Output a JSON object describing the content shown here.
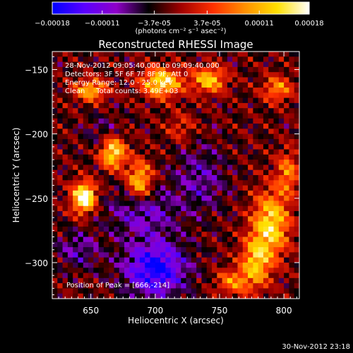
{
  "chart_data": {
    "type": "heatmap",
    "title": "Reconstructed RHESSI Image",
    "xlabel": "Heliocentric X (arcsec)",
    "ylabel": "Heliocentric Y (arcsec)",
    "xlim": [
      620,
      812
    ],
    "ylim": [
      -328,
      -136
    ],
    "x_ticks": [
      650,
      700,
      750,
      800
    ],
    "y_ticks": [
      -150,
      -200,
      -250,
      -300
    ],
    "x_tick_labels": [
      "650",
      "700",
      "750",
      "800"
    ],
    "y_tick_labels": [
      "−150",
      "−200",
      "−250",
      "−300"
    ],
    "colorbar": {
      "range": [
        -0.00018,
        0.00018
      ],
      "tick_values": [
        -0.00018,
        -0.00011,
        -3.7e-05,
        3.7e-05,
        0.00011,
        0.00018
      ],
      "tick_labels": [
        "−0.00018",
        "−0.00011",
        "−3.7e-05",
        "3.7e-05",
        "0.00011",
        "0.00018"
      ],
      "unit_label": "(photons cm⁻² s⁻¹ asec⁻²)",
      "colormap": [
        "#0000ff",
        "#5a00ff",
        "#8f00c8",
        "#000000",
        "#a00000",
        "#ff3000",
        "#ff9000",
        "#ffe000",
        "#ffffff"
      ]
    },
    "annotations": [
      "28-Nov-2012 09:05:40.000 to 09:09:40.000",
      "Detectors: 3F 5F 6F 7F 8F 9F, Att 0",
      "Energy Range: 12.0 - 25.0 keV",
      "Clean     Total counts: 3.49E+03",
      "Position of Peak = [666,-214]"
    ],
    "peak": {
      "x": 666,
      "y": -214
    },
    "sources": [
      {
        "x": 667,
        "y": -214,
        "amp": 1.0,
        "sx": 7,
        "sy": 9
      },
      {
        "x": 688,
        "y": -237,
        "amp": 0.85,
        "sx": 7,
        "sy": 11
      },
      {
        "x": 643,
        "y": -250,
        "amp": 0.9,
        "sx": 6,
        "sy": 9
      },
      {
        "x": 648,
        "y": -248,
        "amp": 0.6,
        "sx": 5,
        "sy": 6
      },
      {
        "x": 705,
        "y": -160,
        "amp": 0.95,
        "sx": 11,
        "sy": 8
      },
      {
        "x": 650,
        "y": -166,
        "amp": 0.75,
        "sx": 9,
        "sy": 6
      },
      {
        "x": 742,
        "y": -158,
        "amp": 0.8,
        "sx": 9,
        "sy": 7
      },
      {
        "x": 795,
        "y": -165,
        "amp": 0.6,
        "sx": 8,
        "sy": 7
      },
      {
        "x": 790,
        "y": -270,
        "amp": 0.9,
        "sx": 10,
        "sy": 18
      },
      {
        "x": 778,
        "y": -300,
        "amp": 0.75,
        "sx": 8,
        "sy": 14
      },
      {
        "x": 760,
        "y": -315,
        "amp": 0.55,
        "sx": 9,
        "sy": 7
      },
      {
        "x": 803,
        "y": -230,
        "amp": 0.55,
        "sx": 6,
        "sy": 12
      },
      {
        "x": 720,
        "y": -195,
        "amp": 0.3,
        "sx": 8,
        "sy": 8
      },
      {
        "x": 700,
        "y": -305,
        "amp": -0.85,
        "sx": 17,
        "sy": 15
      },
      {
        "x": 690,
        "y": -260,
        "amp": -0.45,
        "sx": 18,
        "sy": 14
      },
      {
        "x": 735,
        "y": -235,
        "amp": -0.35,
        "sx": 14,
        "sy": 18
      },
      {
        "x": 640,
        "y": -290,
        "amp": -0.35,
        "sx": 12,
        "sy": 10
      },
      {
        "x": 660,
        "y": -200,
        "amp": -0.25,
        "sx": 10,
        "sy": 10
      }
    ]
  },
  "footer": {
    "timestamp": "30-Nov-2012 23:18"
  }
}
